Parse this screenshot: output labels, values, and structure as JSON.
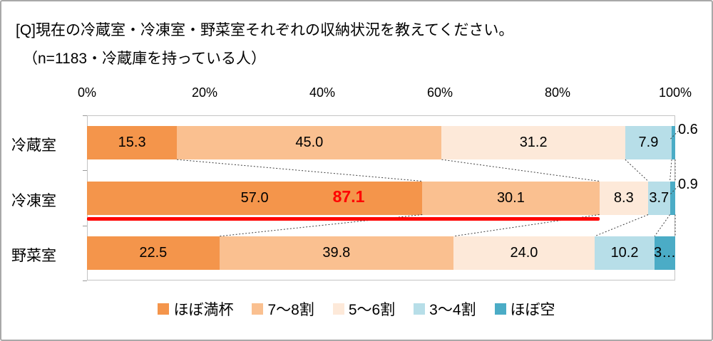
{
  "header": {
    "title": "[Q]現在の冷蔵室・冷凍室・野菜室それぞれの収納状況を教えてください。",
    "subtitle": "（n=1183・冷蔵庫を持っている人）"
  },
  "chart_data": {
    "type": "bar",
    "variant": "horizontal-stacked",
    "categories": [
      "冷蔵室",
      "冷凍室",
      "野菜室"
    ],
    "series": [
      {
        "name": "ほぼ満杯",
        "color": "#F4954B",
        "values": [
          15.3,
          57.0,
          22.5
        ]
      },
      {
        "name": "7〜8割",
        "color": "#FAC090",
        "values": [
          45.0,
          30.1,
          39.8
        ]
      },
      {
        "name": "5〜6割",
        "color": "#FDE9D9",
        "values": [
          31.2,
          8.3,
          24.0
        ]
      },
      {
        "name": "3〜4割",
        "color": "#B7DEE8",
        "values": [
          7.9,
          3.7,
          10.2
        ]
      },
      {
        "name": "ほぼ空",
        "color": "#4BACC6",
        "values": [
          0.6,
          0.9,
          3.5
        ]
      }
    ],
    "segment_labels": [
      [
        "15.3",
        "45.0",
        "31.2",
        "7.9",
        ""
      ],
      [
        "57.0",
        "30.1",
        "8.3",
        "3.7",
        ""
      ],
      [
        "22.5",
        "39.8",
        "24.0",
        "10.2",
        "3…"
      ]
    ],
    "outside_labels": [
      "0.6",
      "0.9",
      ""
    ],
    "x_ticks": [
      "0%",
      "20%",
      "40%",
      "60%",
      "80%",
      "100%"
    ],
    "xlim": [
      0,
      100
    ],
    "annotation": {
      "text": "87.1",
      "color": "#FF0000",
      "category_index": 1,
      "underline_extent": 87.1
    },
    "legend_position": "bottom",
    "grid": false
  }
}
